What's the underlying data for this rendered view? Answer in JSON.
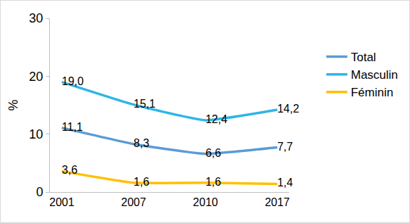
{
  "chart_data": {
    "type": "line",
    "categories": [
      "2001",
      "2007",
      "2010",
      "2017"
    ],
    "y_label": "%",
    "series": [
      {
        "name": "Total",
        "color": "#5b9bd5",
        "values": [
          11.1,
          8.3,
          6.6,
          7.7
        ],
        "value_labels": [
          "11,1",
          "8,3",
          "6,6",
          "7,7"
        ]
      },
      {
        "name": "Masculin",
        "color": "#2eb5e8",
        "values": [
          19.0,
          15.1,
          12.4,
          14.2
        ],
        "value_labels": [
          "19,0",
          "15,1",
          "12,4",
          "14,2"
        ]
      },
      {
        "name": "Féminin",
        "color": "#ffc000",
        "values": [
          3.6,
          1.6,
          1.6,
          1.4
        ],
        "value_labels": [
          "3,6",
          "1,6",
          "1,6",
          "1,4"
        ]
      }
    ],
    "ylim": [
      0,
      30
    ],
    "yticks": [
      0,
      10,
      20,
      30
    ],
    "grid": false,
    "legend": "right",
    "data_labels": true
  }
}
